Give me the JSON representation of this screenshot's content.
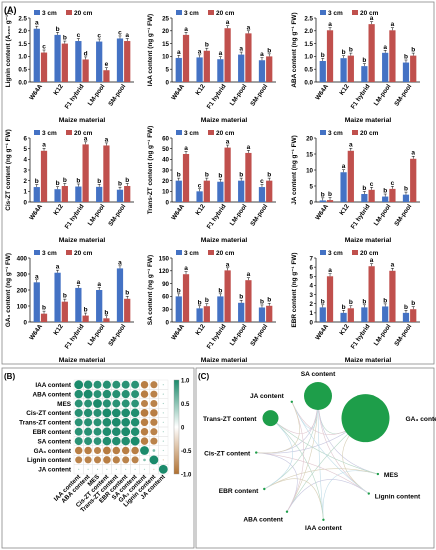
{
  "panel_labels": [
    "(A)",
    "(B)",
    "(C)"
  ],
  "shared_x_label": "Maize material",
  "colors": {
    "cm3": "#4472c4",
    "cm20": "#c0504d",
    "pos": "#1b8a6b",
    "neg": "#b07030",
    "circle": "#1e9e4a"
  },
  "chart_data": [
    {
      "type": "bar",
      "ylabel": "Lignin content (A₂₈₀ g⁻¹)",
      "ylim": [
        0,
        2.5
      ],
      "yticks": [
        "0.0",
        "0.5",
        "1.0",
        "1.5",
        "2.0",
        "2.5"
      ],
      "categories": [
        "W64A",
        "K12",
        "F1 hybrid",
        "LM-pool",
        "SM-pool"
      ],
      "series": [
        {
          "name": "3 cm",
          "values": [
            2.08,
            1.84,
            1.6,
            1.58,
            1.7
          ],
          "letters": [
            "a",
            "b",
            "c",
            "c",
            "c"
          ]
        },
        {
          "name": "20 cm",
          "values": [
            1.15,
            1.5,
            0.88,
            0.46,
            1.6
          ],
          "letters": [
            "c",
            "b",
            "d",
            "e",
            "a"
          ]
        }
      ]
    },
    {
      "type": "bar",
      "ylabel": "IAA content (ng g⁻¹ FW)",
      "ylim": [
        0,
        25
      ],
      "yticks": [
        "0",
        "5",
        "10",
        "15",
        "20",
        "25"
      ],
      "categories": [
        "W64A",
        "K12",
        "F1 hybrid",
        "LM-pool",
        "SM-pool"
      ],
      "series": [
        {
          "name": "3 cm",
          "values": [
            9.4,
            9.6,
            8.9,
            10.7,
            8.5
          ],
          "letters": [
            "a",
            "a",
            "a",
            "a",
            "a"
          ]
        },
        {
          "name": "20 cm",
          "values": [
            18.4,
            12.2,
            21,
            19,
            10
          ],
          "letters": [
            "a",
            "b",
            "a",
            "a",
            "b"
          ]
        }
      ]
    },
    {
      "type": "bar",
      "ylabel": "ABA content (ng g⁻¹ FW)",
      "ylim": [
        0,
        2.5
      ],
      "yticks": [
        "0.0",
        "0.5",
        "1.0",
        "1.5",
        "2.0",
        "2.5"
      ],
      "categories": [
        "W64A",
        "K12",
        "F1 hybrid",
        "LM-pool",
        "SM-pool"
      ],
      "series": [
        {
          "name": "3 cm",
          "values": [
            0.82,
            0.93,
            0.62,
            1.14,
            0.76
          ],
          "letters": [
            "b",
            "b",
            "b",
            "a",
            "b"
          ]
        },
        {
          "name": "20 cm",
          "values": [
            2.02,
            1.03,
            2.26,
            2.02,
            1.03
          ],
          "letters": [
            "a",
            "b",
            "a",
            "a",
            "b"
          ]
        }
      ]
    },
    {
      "type": "bar",
      "ylabel": "Cis-ZT content (ng g⁻¹ FW)",
      "ylim": [
        0,
        6
      ],
      "yticks": [
        "0",
        "1",
        "2",
        "3",
        "4",
        "5",
        "6"
      ],
      "categories": [
        "W64A",
        "K12",
        "F1 hybrid",
        "LM-pool",
        "SM-pool"
      ],
      "series": [
        {
          "name": "3 cm",
          "values": [
            1.4,
            1.2,
            1.45,
            1.42,
            1.15
          ],
          "letters": [
            "b",
            "b",
            "b",
            "b",
            "b"
          ]
        },
        {
          "name": "20 cm",
          "values": [
            4.8,
            1.5,
            5.4,
            5.3,
            1.5
          ],
          "letters": [
            "a",
            "b",
            "a",
            "a",
            "b"
          ]
        }
      ]
    },
    {
      "type": "bar",
      "ylabel": "Trans-ZT content (ng g⁻¹ FW)",
      "ylim": [
        0,
        60
      ],
      "yticks": [
        "0",
        "10",
        "20",
        "30",
        "40",
        "50",
        "60"
      ],
      "categories": [
        "W64A",
        "K12",
        "F1 hybrid",
        "LM-pool",
        "SM-pool"
      ],
      "series": [
        {
          "name": "3 cm",
          "values": [
            20,
            10,
            19,
            20,
            14
          ],
          "letters": [
            "b",
            "c",
            "b",
            "b",
            "c"
          ]
        },
        {
          "name": "20 cm",
          "values": [
            45,
            20,
            51,
            46,
            20
          ],
          "letters": [
            "a",
            "b",
            "a",
            "a",
            "b"
          ]
        }
      ]
    },
    {
      "type": "bar",
      "ylabel": "JA content (ng g⁻¹ FW)",
      "ylim": [
        0,
        20
      ],
      "yticks": [
        "0",
        "5",
        "10",
        "15",
        "20"
      ],
      "categories": [
        "W64A",
        "K12",
        "F1 hybrid",
        "LM-pool",
        "SM-pool"
      ],
      "series": [
        {
          "name": "3 cm",
          "values": [
            0.5,
            9.3,
            2.5,
            1.7,
            2.3
          ],
          "letters": [
            "b",
            "a",
            "b",
            "b",
            "b"
          ]
        },
        {
          "name": "20 cm",
          "values": [
            0.6,
            16,
            3.8,
            4.1,
            13.5
          ],
          "letters": [
            "b",
            "a",
            "c",
            "c",
            "a"
          ]
        }
      ]
    },
    {
      "type": "bar",
      "ylabel": "GA₃ content (ng g⁻¹ FW)",
      "ylim": [
        0,
        400
      ],
      "yticks": [
        "0",
        "100",
        "200",
        "300",
        "400"
      ],
      "categories": [
        "W64A",
        "K12",
        "F1 hybrid",
        "LM-pool",
        "SM-pool"
      ],
      "series": [
        {
          "name": "3 cm",
          "values": [
            248,
            308,
            213,
            200,
            335
          ],
          "letters": [
            "a",
            "a",
            "a",
            "a",
            "a"
          ]
        },
        {
          "name": "20 cm",
          "values": [
            52,
            127,
            40,
            23,
            145
          ],
          "letters": [
            "b",
            "b",
            "b",
            "b",
            "b"
          ]
        }
      ]
    },
    {
      "type": "bar",
      "ylabel": "SA content (ng g⁻¹ FW)",
      "ylim": [
        0,
        150
      ],
      "yticks": [
        "0",
        "30",
        "60",
        "90",
        "120",
        "150"
      ],
      "categories": [
        "W64A",
        "K12",
        "F1 hybrid",
        "LM-pool",
        "SM-pool"
      ],
      "series": [
        {
          "name": "3 cm",
          "values": [
            60,
            32,
            60,
            45,
            34
          ],
          "letters": [
            "b",
            "b",
            "b",
            "b",
            "b"
          ]
        },
        {
          "name": "20 cm",
          "values": [
            112,
            37,
            121,
            98,
            38
          ],
          "letters": [
            "a",
            "b",
            "a",
            "a",
            "b"
          ]
        }
      ]
    },
    {
      "type": "bar",
      "ylabel": "EBR content (ng g⁻¹ FW)",
      "ylim": [
        0,
        7
      ],
      "yticks": [
        "0",
        "1",
        "2",
        "3",
        "4",
        "5",
        "6",
        "7"
      ],
      "categories": [
        "W64A",
        "K12",
        "F1 hybrid",
        "LM-pool",
        "SM-pool"
      ],
      "series": [
        {
          "name": "3 cm",
          "values": [
            1.6,
            1.0,
            1.6,
            1.7,
            1.0
          ],
          "letters": [
            "b",
            "b",
            "b",
            "b",
            "b"
          ]
        },
        {
          "name": "20 cm",
          "values": [
            5.0,
            1.5,
            6.1,
            5.6,
            1.4
          ],
          "letters": [
            "a",
            "b",
            "a",
            "a",
            "b"
          ]
        }
      ]
    },
    {
      "type": "heatmap",
      "labels": [
        "IAA content",
        "ABA content",
        "MES",
        "Cis-ZT content",
        "Trans-ZT content",
        "EBR content",
        "SA content",
        "GA₃ content",
        "Lignin content",
        "JA content"
      ],
      "colorbar_ticks": [
        "1.0",
        "0.5",
        "0",
        "-0.5",
        "-1.0"
      ],
      "matrix": [
        [
          1,
          0.95,
          0.9,
          0.92,
          0.9,
          0.9,
          0.9,
          -0.85,
          -0.8,
          0.1
        ],
        [
          0.95,
          1,
          0.9,
          0.95,
          0.92,
          0.92,
          0.9,
          -0.85,
          -0.8,
          0.1
        ],
        [
          0.9,
          0.9,
          1,
          0.92,
          0.9,
          0.9,
          0.88,
          -0.8,
          -0.8,
          0.1
        ],
        [
          0.92,
          0.95,
          0.92,
          1,
          0.98,
          0.97,
          0.96,
          -0.88,
          -0.85,
          0.05
        ],
        [
          0.9,
          0.92,
          0.9,
          0.98,
          1,
          0.98,
          0.96,
          -0.85,
          -0.82,
          0.05
        ],
        [
          0.9,
          0.92,
          0.9,
          0.97,
          0.98,
          1,
          0.96,
          -0.85,
          -0.8,
          0.05
        ],
        [
          0.9,
          0.9,
          0.88,
          0.96,
          0.96,
          0.96,
          1,
          -0.85,
          -0.8,
          0.1
        ],
        [
          -0.85,
          -0.85,
          -0.8,
          -0.88,
          -0.85,
          -0.85,
          -0.85,
          1,
          0.3,
          0.05
        ],
        [
          -0.8,
          -0.8,
          -0.8,
          -0.85,
          -0.82,
          -0.8,
          -0.8,
          0.3,
          1,
          -0.1
        ],
        [
          0.1,
          0.1,
          0.1,
          0.05,
          0.05,
          0.05,
          0.1,
          0.05,
          -0.1,
          1
        ]
      ]
    },
    {
      "type": "network",
      "nodes": [
        "SA content",
        "GA₃ content",
        "MES",
        "Lignin content",
        "IAA content",
        "ABA content",
        "EBR content",
        "Cis-ZT content",
        "Trans-ZT content",
        "JA content"
      ],
      "node_weight": [
        0.5,
        1,
        0,
        0,
        0,
        0,
        0,
        0,
        0.2,
        0
      ]
    }
  ]
}
